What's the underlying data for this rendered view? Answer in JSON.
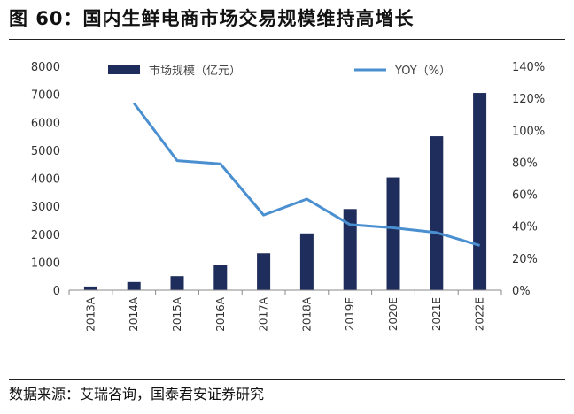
{
  "title": "图 60：国内生鲜电商市场交易规模维持高增长",
  "source": "数据来源：艾瑞咨询，国泰君安证券研究",
  "colors": {
    "bar": "#1f2d5c",
    "line": "#4a8fd0"
  },
  "chart_data": {
    "type": "bar",
    "categories": [
      "2013A",
      "2014A",
      "2015A",
      "2016A",
      "2017A",
      "2018A",
      "2019E",
      "2020E",
      "2021E",
      "2022E"
    ],
    "series": [
      {
        "name": "市场规模（亿元）",
        "type": "bar",
        "axis": "left",
        "values": [
          130,
          290,
          500,
          900,
          1320,
          2030,
          2900,
          4030,
          5500,
          7050
        ]
      },
      {
        "name": "YOY（%）",
        "type": "line",
        "axis": "right",
        "values": [
          null,
          117,
          81,
          79,
          47,
          57,
          41,
          39,
          36,
          28
        ]
      }
    ],
    "left_axis": {
      "ylim": [
        0,
        8000
      ],
      "ticks": [
        "0",
        "1000",
        "2000",
        "3000",
        "4000",
        "5000",
        "6000",
        "7000",
        "8000"
      ]
    },
    "right_axis": {
      "ylim": [
        0,
        140
      ],
      "ticks": [
        "0%",
        "20%",
        "40%",
        "60%",
        "80%",
        "100%",
        "120%",
        "140%"
      ]
    },
    "legend_placement": "top",
    "grid": false
  }
}
